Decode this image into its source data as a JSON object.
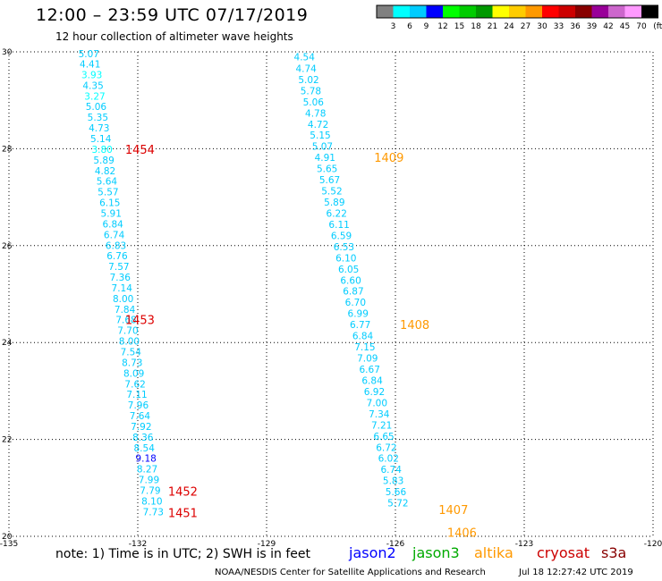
{
  "title": "12:00 – 23:59 UTC 07/17/2019",
  "subtitle": "12 hour collection of altimeter wave heights",
  "note": "note:  1) Time is in UTC;  2) SWH is in feet",
  "satellites": [
    {
      "name": "jason2",
      "color": "#0000ff"
    },
    {
      "name": "jason3",
      "color": "#00aa00"
    },
    {
      "name": "altika",
      "color": "#ff9900"
    },
    {
      "name": "cryosat",
      "color": "#cc0000"
    },
    {
      "name": "s3a",
      "color": "#880000"
    }
  ],
  "footer": "NOAA/NESDIS Center for Satellite Applications and Research",
  "footer_time": "Jul 18 12:27:42 UTC 2019",
  "colorbar": {
    "labels": [
      "3",
      "6",
      "9",
      "12",
      "15",
      "18",
      "21",
      "24",
      "27",
      "30",
      "33",
      "36",
      "39",
      "42",
      "45",
      "70"
    ],
    "unit": "(ft)",
    "colors": [
      "#808080",
      "#00ffff",
      "#00ccff",
      "#0000ff",
      "#00ff00",
      "#00cc00",
      "#009900",
      "#ffff00",
      "#ffcc00",
      "#ff9900",
      "#ff0000",
      "#cc0000",
      "#880000",
      "#990099",
      "#cc66cc",
      "#ff99ff",
      "#000000"
    ]
  },
  "chart_data": {
    "type": "scatter",
    "title": "12:00 – 23:59 UTC 07/17/2019",
    "subtitle": "12 hour collection of altimeter wave heights",
    "xlim": [
      -135,
      -120
    ],
    "ylim": [
      20,
      30
    ],
    "x_ticks": [
      -135,
      -132,
      -129,
      -126,
      -123,
      -120
    ],
    "x_tick_labels": [
      "-135",
      "-132",
      "-129",
      "-126",
      "-123",
      "-120"
    ],
    "y_ticks": [
      20,
      22,
      24,
      26,
      28,
      30
    ],
    "grid": true,
    "tracks": [
      {
        "points": [
          {
            "lon": -133.14,
            "lat": 29.96,
            "swh": "5.07",
            "color": "#00ccff"
          },
          {
            "lon": -133.11,
            "lat": 29.75,
            "swh": "4.41",
            "color": "#00ccff"
          },
          {
            "lon": -133.07,
            "lat": 29.53,
            "swh": "3.93",
            "color": "#00ffff"
          },
          {
            "lon": -133.04,
            "lat": 29.31,
            "swh": "4.35",
            "color": "#00ccff"
          },
          {
            "lon": -133.0,
            "lat": 29.09,
            "swh": "3.27",
            "color": "#00ffff"
          },
          {
            "lon": -132.97,
            "lat": 28.87,
            "swh": "5.06",
            "color": "#00ccff"
          },
          {
            "lon": -132.93,
            "lat": 28.65,
            "swh": "5.35",
            "color": "#00ccff"
          },
          {
            "lon": -132.9,
            "lat": 28.43,
            "swh": "4.73",
            "color": "#00ccff"
          },
          {
            "lon": -132.86,
            "lat": 28.21,
            "swh": "5.14",
            "color": "#00ccff"
          },
          {
            "lon": -132.83,
            "lat": 27.99,
            "swh": "3.80",
            "color": "#00ffff"
          },
          {
            "lon": -132.79,
            "lat": 27.77,
            "swh": "5.89",
            "color": "#00ccff"
          },
          {
            "lon": -132.76,
            "lat": 27.55,
            "swh": "4.82",
            "color": "#00ccff"
          },
          {
            "lon": -132.72,
            "lat": 27.33,
            "swh": "5.64",
            "color": "#00ccff"
          },
          {
            "lon": -132.69,
            "lat": 27.11,
            "swh": "5.57",
            "color": "#00ccff"
          },
          {
            "lon": -132.65,
            "lat": 26.89,
            "swh": "6.15",
            "color": "#00ccff"
          },
          {
            "lon": -132.62,
            "lat": 26.67,
            "swh": "5.91",
            "color": "#00ccff"
          },
          {
            "lon": -132.58,
            "lat": 26.45,
            "swh": "6.84",
            "color": "#00ccff"
          },
          {
            "lon": -132.55,
            "lat": 26.23,
            "swh": "6.74",
            "color": "#00ccff"
          },
          {
            "lon": -132.51,
            "lat": 26.01,
            "swh": "6.83",
            "color": "#00ccff"
          },
          {
            "lon": -132.48,
            "lat": 25.79,
            "swh": "6.76",
            "color": "#00ccff"
          },
          {
            "lon": -132.44,
            "lat": 25.57,
            "swh": "7.57",
            "color": "#00ccff"
          },
          {
            "lon": -132.41,
            "lat": 25.35,
            "swh": "7.36",
            "color": "#00ccff"
          },
          {
            "lon": -132.37,
            "lat": 25.13,
            "swh": "7.14",
            "color": "#00ccff"
          },
          {
            "lon": -132.34,
            "lat": 24.91,
            "swh": "8.00",
            "color": "#00ccff"
          },
          {
            "lon": -132.3,
            "lat": 24.69,
            "swh": "7.84",
            "color": "#00ccff"
          },
          {
            "lon": -132.27,
            "lat": 24.47,
            "swh": "7.68",
            "color": "#00ccff"
          },
          {
            "lon": -132.23,
            "lat": 24.25,
            "swh": "7.70",
            "color": "#00ccff"
          },
          {
            "lon": -132.2,
            "lat": 24.03,
            "swh": "8.00",
            "color": "#00ccff"
          },
          {
            "lon": -132.16,
            "lat": 23.81,
            "swh": "7.54",
            "color": "#00ccff"
          },
          {
            "lon": -132.13,
            "lat": 23.59,
            "swh": "8.73",
            "color": "#00ccff"
          },
          {
            "lon": -132.09,
            "lat": 23.37,
            "swh": "8.09",
            "color": "#00ccff"
          },
          {
            "lon": -132.06,
            "lat": 23.15,
            "swh": "7.62",
            "color": "#00ccff"
          },
          {
            "lon": -132.02,
            "lat": 22.93,
            "swh": "7.11",
            "color": "#00ccff"
          },
          {
            "lon": -131.99,
            "lat": 22.71,
            "swh": "7.96",
            "color": "#00ccff"
          },
          {
            "lon": -131.95,
            "lat": 22.49,
            "swh": "7.64",
            "color": "#00ccff"
          },
          {
            "lon": -131.92,
            "lat": 22.27,
            "swh": "7.92",
            "color": "#00ccff"
          },
          {
            "lon": -131.88,
            "lat": 22.05,
            "swh": "8.36",
            "color": "#00ccff"
          },
          {
            "lon": -131.85,
            "lat": 21.83,
            "swh": "8.54",
            "color": "#00ccff"
          },
          {
            "lon": -131.81,
            "lat": 21.61,
            "swh": "9.18",
            "color": "#0000ff"
          },
          {
            "lon": -131.78,
            "lat": 21.39,
            "swh": "8.27",
            "color": "#00ccff"
          },
          {
            "lon": -131.74,
            "lat": 21.17,
            "swh": "7.99",
            "color": "#00ccff"
          },
          {
            "lon": -131.71,
            "lat": 20.95,
            "swh": "7.79",
            "color": "#00ccff"
          },
          {
            "lon": -131.67,
            "lat": 20.73,
            "swh": "8.10",
            "color": "#00ccff"
          },
          {
            "lon": -131.64,
            "lat": 20.51,
            "swh": "7.73",
            "color": "#00ccff"
          }
        ],
        "time_labels": [
          {
            "lon": -131.95,
            "lat": 27.99,
            "text": "1454",
            "color": "#dd0000"
          },
          {
            "lon": -131.95,
            "lat": 24.47,
            "text": "1453",
            "color": "#dd0000"
          },
          {
            "lon": -130.95,
            "lat": 20.93,
            "text": "1452",
            "color": "#dd0000"
          },
          {
            "lon": -130.95,
            "lat": 20.49,
            "text": "1451",
            "color": "#dd0000"
          }
        ]
      },
      {
        "points": [
          {
            "lon": -128.12,
            "lat": 29.9,
            "swh": "4.54",
            "color": "#00ccff"
          },
          {
            "lon": -128.08,
            "lat": 29.66,
            "swh": "4.74",
            "color": "#00ccff"
          },
          {
            "lon": -128.02,
            "lat": 29.43,
            "swh": "5.02",
            "color": "#00ccff"
          },
          {
            "lon": -127.97,
            "lat": 29.2,
            "swh": "5.78",
            "color": "#00ccff"
          },
          {
            "lon": -127.91,
            "lat": 28.97,
            "swh": "5.06",
            "color": "#00ccff"
          },
          {
            "lon": -127.86,
            "lat": 28.74,
            "swh": "4.78",
            "color": "#00ccff"
          },
          {
            "lon": -127.8,
            "lat": 28.51,
            "swh": "4.72",
            "color": "#00ccff"
          },
          {
            "lon": -127.75,
            "lat": 28.28,
            "swh": "5.15",
            "color": "#00ccff"
          },
          {
            "lon": -127.7,
            "lat": 28.05,
            "swh": "5.07",
            "color": "#00ccff"
          },
          {
            "lon": -127.64,
            "lat": 27.82,
            "swh": "4.91",
            "color": "#00ccff"
          },
          {
            "lon": -127.59,
            "lat": 27.59,
            "swh": "5.65",
            "color": "#00ccff"
          },
          {
            "lon": -127.53,
            "lat": 27.36,
            "swh": "5.67",
            "color": "#00ccff"
          },
          {
            "lon": -127.48,
            "lat": 27.13,
            "swh": "5.52",
            "color": "#00ccff"
          },
          {
            "lon": -127.42,
            "lat": 26.9,
            "swh": "5.89",
            "color": "#00ccff"
          },
          {
            "lon": -127.37,
            "lat": 26.67,
            "swh": "6.22",
            "color": "#00ccff"
          },
          {
            "lon": -127.31,
            "lat": 26.44,
            "swh": "6.11",
            "color": "#00ccff"
          },
          {
            "lon": -127.26,
            "lat": 26.21,
            "swh": "6.59",
            "color": "#00ccff"
          },
          {
            "lon": -127.2,
            "lat": 25.98,
            "swh": "6.53",
            "color": "#00ccff"
          },
          {
            "lon": -127.15,
            "lat": 25.75,
            "swh": "6.10",
            "color": "#00ccff"
          },
          {
            "lon": -127.09,
            "lat": 25.52,
            "swh": "6.05",
            "color": "#00ccff"
          },
          {
            "lon": -127.04,
            "lat": 25.29,
            "swh": "6.60",
            "color": "#00ccff"
          },
          {
            "lon": -126.98,
            "lat": 25.06,
            "swh": "6.87",
            "color": "#00ccff"
          },
          {
            "lon": -126.93,
            "lat": 24.83,
            "swh": "6.70",
            "color": "#00ccff"
          },
          {
            "lon": -126.87,
            "lat": 24.6,
            "swh": "6.99",
            "color": "#00ccff"
          },
          {
            "lon": -126.82,
            "lat": 24.37,
            "swh": "6.77",
            "color": "#00ccff"
          },
          {
            "lon": -126.76,
            "lat": 24.14,
            "swh": "6.84",
            "color": "#00ccff"
          },
          {
            "lon": -126.71,
            "lat": 23.91,
            "swh": "7.15",
            "color": "#00ccff"
          },
          {
            "lon": -126.65,
            "lat": 23.68,
            "swh": "7.09",
            "color": "#00ccff"
          },
          {
            "lon": -126.6,
            "lat": 23.45,
            "swh": "6.67",
            "color": "#00ccff"
          },
          {
            "lon": -126.54,
            "lat": 23.22,
            "swh": "6.84",
            "color": "#00ccff"
          },
          {
            "lon": -126.49,
            "lat": 22.99,
            "swh": "6.92",
            "color": "#00ccff"
          },
          {
            "lon": -126.43,
            "lat": 22.76,
            "swh": "7.00",
            "color": "#00ccff"
          },
          {
            "lon": -126.38,
            "lat": 22.53,
            "swh": "7.34",
            "color": "#00ccff"
          },
          {
            "lon": -126.32,
            "lat": 22.3,
            "swh": "7.21",
            "color": "#00ccff"
          },
          {
            "lon": -126.27,
            "lat": 22.07,
            "swh": "6.65",
            "color": "#00ccff"
          },
          {
            "lon": -126.21,
            "lat": 21.84,
            "swh": "6.72",
            "color": "#00ccff"
          },
          {
            "lon": -126.16,
            "lat": 21.61,
            "swh": "6.02",
            "color": "#00ccff"
          },
          {
            "lon": -126.1,
            "lat": 21.38,
            "swh": "6.74",
            "color": "#00ccff"
          },
          {
            "lon": -126.05,
            "lat": 21.15,
            "swh": "5.83",
            "color": "#00ccff"
          },
          {
            "lon": -125.99,
            "lat": 20.92,
            "swh": "5.66",
            "color": "#00ccff"
          },
          {
            "lon": -125.94,
            "lat": 20.69,
            "swh": "5.72",
            "color": "#00ccff"
          }
        ],
        "time_labels": [
          {
            "lon": -126.15,
            "lat": 27.82,
            "text": "1409",
            "color": "#ff9900"
          },
          {
            "lon": -125.55,
            "lat": 24.37,
            "text": "1408",
            "color": "#ff9900"
          },
          {
            "lon": -124.65,
            "lat": 20.55,
            "text": "1407",
            "color": "#ff9900"
          },
          {
            "lon": -124.45,
            "lat": 20.08,
            "text": "1406",
            "color": "#ff9900"
          }
        ]
      }
    ]
  }
}
